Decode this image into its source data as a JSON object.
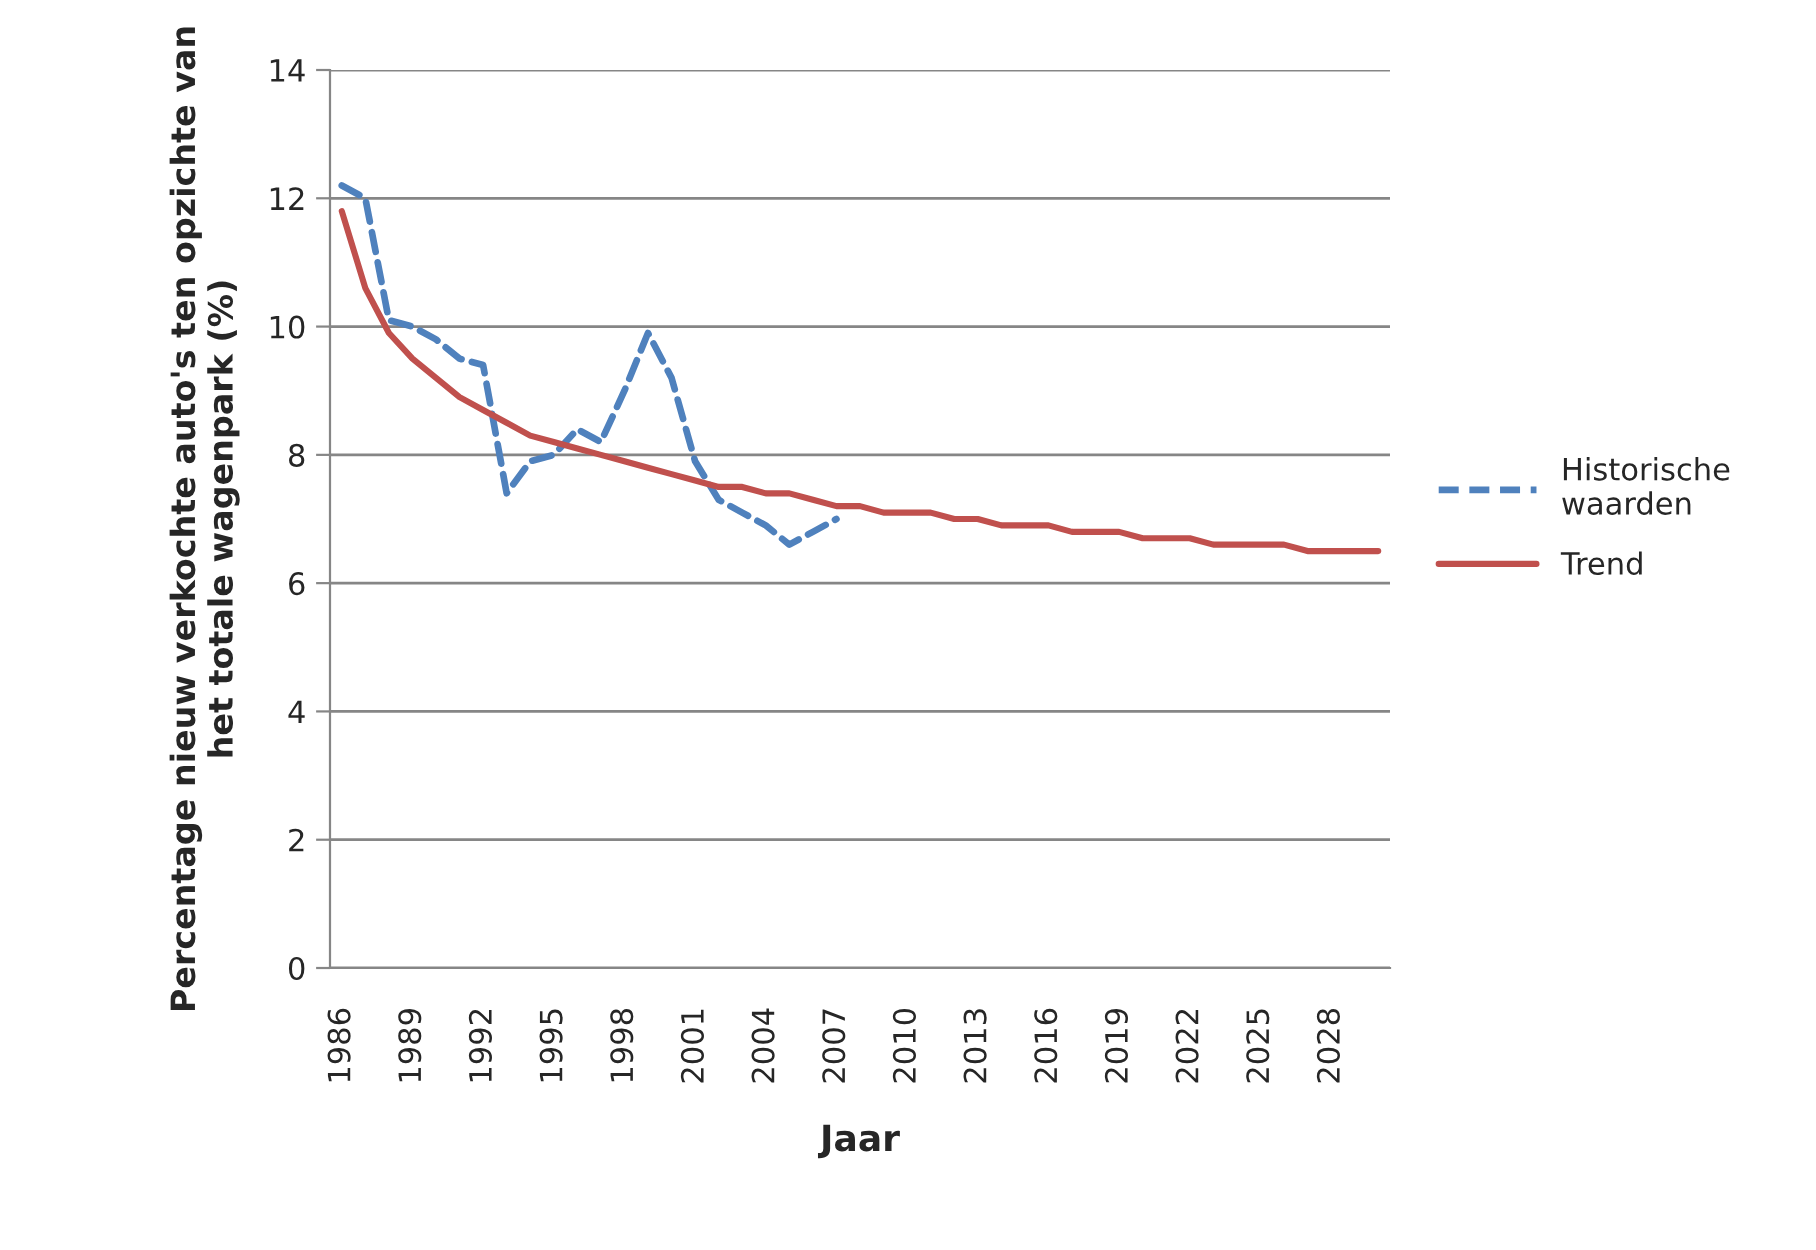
{
  "chart_data": {
    "type": "line",
    "xlabel": "Jaar",
    "ylabel": "Percentage nieuw verkochte auto's ten opzichte van het totale wagenpark (%)",
    "categories": [
      "1986",
      null,
      null,
      "1989",
      null,
      null,
      "1992",
      null,
      null,
      "1995",
      null,
      null,
      "1998",
      null,
      null,
      "2001",
      null,
      null,
      "2004",
      null,
      null,
      "2007",
      null,
      null,
      "2010",
      null,
      null,
      "2013",
      null,
      null,
      "2016",
      null,
      null,
      "2019",
      null,
      null,
      "2022",
      null,
      null,
      "2025",
      null,
      null,
      "2028",
      null,
      null
    ],
    "series": [
      {
        "name": "Historische waarden",
        "color": "#4f81bd",
        "line_style": "dashed",
        "values": [
          12.2,
          12.0,
          10.1,
          10.0,
          9.8,
          9.5,
          9.4,
          7.4,
          7.9,
          8.0,
          8.4,
          8.2,
          9.0,
          9.9,
          9.2,
          7.9,
          7.3,
          7.1,
          6.9,
          6.6,
          6.8,
          7.0,
          null,
          null,
          null,
          null,
          null,
          null,
          null,
          null,
          null,
          null,
          null,
          null,
          null,
          null,
          null,
          null,
          null,
          null,
          null,
          null,
          null,
          null,
          null
        ]
      },
      {
        "name": "Trend",
        "color": "#c0504d",
        "line_style": "solid",
        "values": [
          11.8,
          10.6,
          9.9,
          9.5,
          9.2,
          8.9,
          8.7,
          8.5,
          8.3,
          8.2,
          8.1,
          8.0,
          7.9,
          7.8,
          7.7,
          7.6,
          7.5,
          7.5,
          7.4,
          7.4,
          7.3,
          7.2,
          7.2,
          7.1,
          7.1,
          7.1,
          7.0,
          7.0,
          6.9,
          6.9,
          6.9,
          6.8,
          6.8,
          6.8,
          6.7,
          6.7,
          6.7,
          6.6,
          6.6,
          6.6,
          6.6,
          6.5,
          6.5,
          6.5,
          6.5
        ]
      }
    ],
    "ylim": [
      0,
      14
    ],
    "yticks": [
      0,
      2,
      4,
      6,
      8,
      10,
      12,
      14
    ],
    "grid": "y",
    "legend": "right",
    "marker": "none"
  }
}
